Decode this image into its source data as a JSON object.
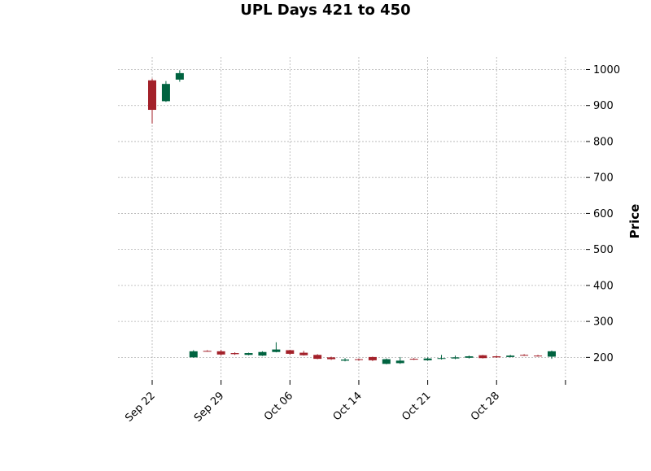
{
  "chart_data": {
    "type": "candlestick",
    "title": "UPL Days 421 to 450",
    "xlabel": "",
    "ylabel": "Price",
    "ylim": [
      142,
      1035
    ],
    "y_ticks": [
      200,
      300,
      400,
      500,
      600,
      700,
      800,
      900,
      1000
    ],
    "x_tick_labels": [
      "Sep 22",
      "Sep 29",
      "Oct 06",
      "Oct 14",
      "Oct 21",
      "Oct 28",
      ""
    ],
    "x_tick_positions": [
      0,
      5,
      10,
      15,
      20,
      25,
      30
    ],
    "grid": true,
    "colors": {
      "up": "#006340",
      "down": "#a3212a",
      "grid": "#b0b0b0"
    },
    "candles": [
      {
        "date": "Sep 22",
        "open": 970,
        "high": 975,
        "low": 850,
        "close": 888
      },
      {
        "date": "Sep 23",
        "open": 912,
        "high": 968,
        "low": 910,
        "close": 960
      },
      {
        "date": "Sep 24",
        "open": 972,
        "high": 998,
        "low": 966,
        "close": 990
      },
      {
        "date": "Sep 25",
        "open": 200,
        "high": 220,
        "low": 199,
        "close": 217
      },
      {
        "date": "Sep 26",
        "open": 218,
        "high": 220,
        "low": 216,
        "close": 217
      },
      {
        "date": "Sep 29",
        "open": 217,
        "high": 221,
        "low": 205,
        "close": 208
      },
      {
        "date": "Sep 30",
        "open": 212,
        "high": 214,
        "low": 207,
        "close": 209
      },
      {
        "date": "Oct 01",
        "open": 207,
        "high": 213,
        "low": 206,
        "close": 212
      },
      {
        "date": "Oct 02",
        "open": 205,
        "high": 217,
        "low": 204,
        "close": 215
      },
      {
        "date": "Oct 03",
        "open": 215,
        "high": 242,
        "low": 214,
        "close": 222
      },
      {
        "date": "Oct 06",
        "open": 220,
        "high": 221,
        "low": 207,
        "close": 210
      },
      {
        "date": "Oct 07",
        "open": 213,
        "high": 218,
        "low": 205,
        "close": 206
      },
      {
        "date": "Oct 08",
        "open": 207,
        "high": 209,
        "low": 195,
        "close": 196
      },
      {
        "date": "Oct 09",
        "open": 200,
        "high": 202,
        "low": 193,
        "close": 195
      },
      {
        "date": "Oct 10",
        "open": 191,
        "high": 198,
        "low": 189,
        "close": 194
      },
      {
        "date": "Oct 14",
        "open": 195,
        "high": 197,
        "low": 191,
        "close": 193
      },
      {
        "date": "Oct 15",
        "open": 201,
        "high": 202,
        "low": 190,
        "close": 192
      },
      {
        "date": "Oct 16",
        "open": 182,
        "high": 197,
        "low": 181,
        "close": 195
      },
      {
        "date": "Oct 17",
        "open": 184,
        "high": 201,
        "low": 182,
        "close": 191
      },
      {
        "date": "Oct 20",
        "open": 196,
        "high": 198,
        "low": 193,
        "close": 194
      },
      {
        "date": "Oct 21",
        "open": 192,
        "high": 200,
        "low": 191,
        "close": 197
      },
      {
        "date": "Oct 22",
        "open": 196,
        "high": 207,
        "low": 194,
        "close": 198
      },
      {
        "date": "Oct 23",
        "open": 197,
        "high": 205,
        "low": 195,
        "close": 200
      },
      {
        "date": "Oct 24",
        "open": 199,
        "high": 205,
        "low": 197,
        "close": 203
      },
      {
        "date": "Oct 27",
        "open": 206,
        "high": 207,
        "low": 197,
        "close": 198
      },
      {
        "date": "Oct 28",
        "open": 203,
        "high": 205,
        "low": 199,
        "close": 200
      },
      {
        "date": "Oct 29",
        "open": 201,
        "high": 207,
        "low": 200,
        "close": 205
      },
      {
        "date": "Oct 30",
        "open": 207,
        "high": 209,
        "low": 204,
        "close": 206
      },
      {
        "date": "Oct 31",
        "open": 205,
        "high": 207,
        "low": 202,
        "close": 203
      },
      {
        "date": "Nov 03",
        "open": 202,
        "high": 219,
        "low": 196,
        "close": 217
      }
    ]
  }
}
